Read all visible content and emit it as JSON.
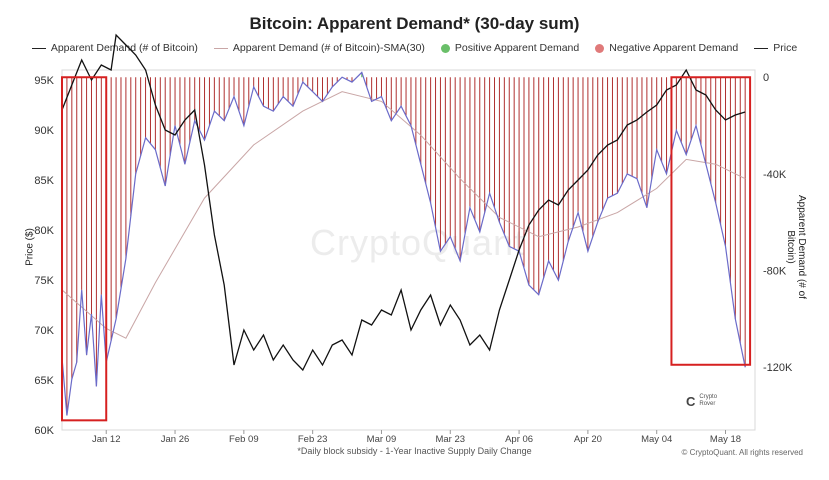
{
  "chart_data": {
    "type": "line",
    "title": "Bitcoin: Apparent Demand* (30-day sum)",
    "footnote": "*Daily block subsidy - 1-Year Inactive Supply Daily Change",
    "copyright": "© CryptoQuant. All rights reserved",
    "watermark": "CryptoQuant",
    "brand_text": [
      "Crypto",
      "Rover"
    ],
    "left_axis": {
      "label": "Price ($)",
      "ticks": [
        "95K",
        "90K",
        "85K",
        "80K",
        "75K",
        "70K",
        "65K",
        "60K"
      ],
      "tick_values": [
        95000,
        90000,
        85000,
        80000,
        75000,
        70000,
        65000,
        60000
      ],
      "range": [
        60000,
        96000
      ]
    },
    "right_axis": {
      "label": "Apparent Demand (# of Bitcoin)",
      "ticks": [
        "0",
        "-40K",
        "-80K",
        "-120K"
      ],
      "tick_values": [
        0,
        -40000,
        -80000,
        -120000
      ],
      "range": [
        -146000,
        3000
      ]
    },
    "x_axis": {
      "ticks": [
        "Jan 12",
        "Jan 26",
        "Feb 09",
        "Feb 23",
        "Mar 09",
        "Mar 23",
        "Apr 06",
        "Apr 20",
        "May 04",
        "May 18"
      ],
      "range": [
        -9,
        132
      ]
    },
    "legend": [
      {
        "label": "Apparent Demand (# of Bitcoin)",
        "kind": "line",
        "color": "#222222"
      },
      {
        "label": "Apparent Demand (# of Bitcoin)-SMA(30)",
        "kind": "line",
        "color": "#c9a6a6"
      },
      {
        "label": "Positive Apparent Demand",
        "kind": "dot",
        "color": "#6abf69"
      },
      {
        "label": "Negative Apparent Demand",
        "kind": "dot",
        "color": "#e07a7a"
      },
      {
        "label": "Price",
        "kind": "line",
        "color": "#111111"
      }
    ],
    "grid": false,
    "colors": {
      "price": "#111111",
      "demand_line": "#6b6bc9",
      "negative_fill": "#b03030",
      "positive_fill": "#4caf50",
      "sma": "#c9a6a6",
      "highlight_box": "#d62020"
    },
    "demand_keypoints_x": [
      -9,
      -8,
      -7,
      -6,
      -5,
      -4,
      -3,
      -2,
      -1,
      0,
      2,
      4,
      6,
      8,
      10,
      12,
      14,
      16,
      18,
      20,
      22,
      24,
      26,
      28,
      30,
      32,
      34,
      36,
      38,
      40,
      42,
      44,
      46,
      48,
      50,
      52,
      54,
      56,
      58,
      60,
      62,
      64,
      66,
      68,
      70,
      72,
      74,
      76,
      78,
      80,
      82,
      84,
      86,
      88,
      90,
      92,
      94,
      96,
      98,
      100,
      102,
      104,
      106,
      108,
      110,
      112,
      114,
      116,
      118,
      120,
      122,
      124,
      126,
      128,
      130
    ],
    "demand_keypoints": [
      -116000,
      -140000,
      -125000,
      -118000,
      -88000,
      -115000,
      -98000,
      -128000,
      -90000,
      -118000,
      -100000,
      -75000,
      -40000,
      -25000,
      -30000,
      -45000,
      -20000,
      -36000,
      -18000,
      -26000,
      -14000,
      -18000,
      -8000,
      -20000,
      -4000,
      -12000,
      -14000,
      -8000,
      -12000,
      -2000,
      -6000,
      -10000,
      -4000,
      0,
      -2000,
      2000,
      -10000,
      -8000,
      -18000,
      -12000,
      -20000,
      -36000,
      -52000,
      -72000,
      -66000,
      -76000,
      -54000,
      -64000,
      -48000,
      -60000,
      -70000,
      -72000,
      -86000,
      -90000,
      -76000,
      -84000,
      -68000,
      -56000,
      -72000,
      -60000,
      -50000,
      -48000,
      -40000,
      -42000,
      -54000,
      -30000,
      -40000,
      -22000,
      -32000,
      -20000,
      -36000,
      -52000,
      -70000,
      -100000,
      -120000
    ],
    "price_keypoints_x": [
      -9,
      -7,
      -5,
      -3,
      -1,
      1,
      2,
      4,
      6,
      8,
      10,
      12,
      14,
      16,
      18,
      20,
      22,
      24,
      26,
      28,
      30,
      32,
      34,
      36,
      38,
      40,
      42,
      44,
      46,
      48,
      50,
      52,
      54,
      56,
      58,
      60,
      62,
      64,
      66,
      68,
      70,
      72,
      74,
      76,
      78,
      80,
      82,
      84,
      86,
      88,
      90,
      92,
      94,
      96,
      98,
      100,
      102,
      104,
      106,
      108,
      110,
      112,
      114,
      116,
      118,
      120,
      122,
      124,
      126,
      128,
      130
    ],
    "price_keypoints": [
      92000,
      94500,
      97000,
      95000,
      96500,
      96000,
      99500,
      98500,
      97500,
      96000,
      92500,
      90000,
      89500,
      91000,
      92000,
      86500,
      79500,
      74500,
      66500,
      70000,
      68000,
      69500,
      67000,
      68500,
      67000,
      66000,
      68000,
      66500,
      68500,
      69000,
      67500,
      71000,
      70500,
      72000,
      71500,
      74000,
      70000,
      72000,
      73500,
      70500,
      72500,
      71000,
      68500,
      69500,
      68000,
      72000,
      75000,
      78000,
      80500,
      82000,
      83000,
      82500,
      84000,
      85000,
      86000,
      87500,
      88500,
      89000,
      90500,
      91000,
      91800,
      92500,
      94000,
      94500,
      96000,
      94000,
      93500,
      92000,
      91000,
      91500,
      91800
    ],
    "sma_keypoints_x": [
      -9,
      0,
      4,
      10,
      20,
      30,
      40,
      48,
      56,
      64,
      72,
      80,
      88,
      96,
      104,
      112,
      118,
      124,
      130
    ],
    "sma_keypoints": [
      -88000,
      -104000,
      -108000,
      -85000,
      -50000,
      -28000,
      -14000,
      -6000,
      -10000,
      -24000,
      -42000,
      -58000,
      -66000,
      -62000,
      -56000,
      -46000,
      -34000,
      -36000,
      -42000
    ],
    "highlight_boxes": [
      {
        "x_range": [
          -9,
          0
        ],
        "demand_range": [
          -142000,
          0
        ]
      },
      {
        "x_range": [
          115,
          131
        ],
        "demand_range": [
          -119000,
          0
        ]
      }
    ]
  }
}
